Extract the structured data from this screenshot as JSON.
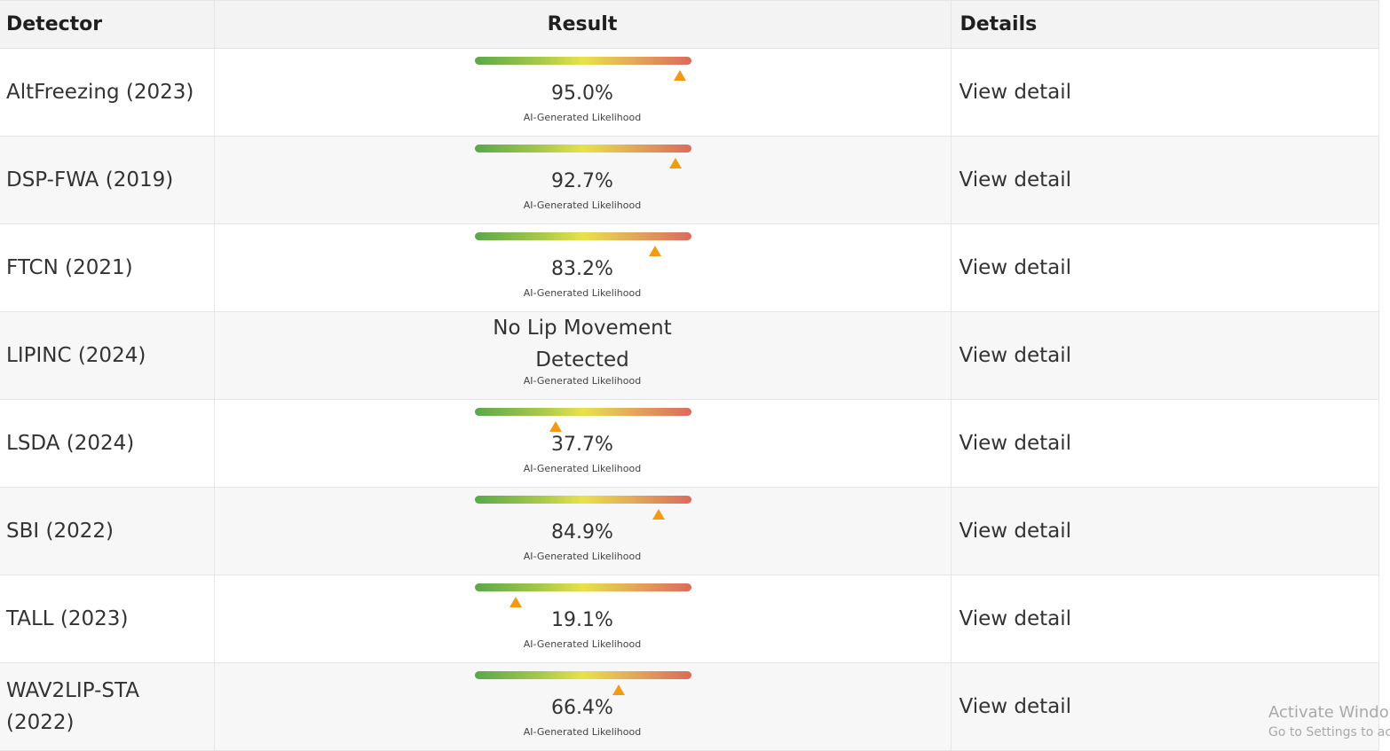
{
  "table": {
    "headers": {
      "detector": "Detector",
      "result": "Result",
      "details": "Details"
    },
    "rows": [
      {
        "detector": "AltFreezing (2023)",
        "percent_text": "95.0%",
        "likelihood": 95.0,
        "sublabel": "AI-Generated Likelihood",
        "details": "View detail"
      },
      {
        "detector": "DSP-FWA (2019)",
        "percent_text": "92.7%",
        "likelihood": 92.7,
        "sublabel": "AI-Generated Likelihood",
        "details": "View detail"
      },
      {
        "detector": "FTCN (2021)",
        "percent_text": "83.2%",
        "likelihood": 83.2,
        "sublabel": "AI-Generated Likelihood",
        "details": "View detail"
      },
      {
        "detector": "LIPINC (2024)",
        "message": "No Lip Movement Detected",
        "sublabel": "AI-Generated Likelihood",
        "details": "View detail"
      },
      {
        "detector": "LSDA (2024)",
        "percent_text": "37.7%",
        "likelihood": 37.7,
        "sublabel": "AI-Generated Likelihood",
        "details": "View detail"
      },
      {
        "detector": "SBI (2022)",
        "percent_text": "84.9%",
        "likelihood": 84.9,
        "sublabel": "AI-Generated Likelihood",
        "details": "View detail"
      },
      {
        "detector": "TALL (2023)",
        "percent_text": "19.1%",
        "likelihood": 19.1,
        "sublabel": "AI-Generated Likelihood",
        "details": "View detail"
      },
      {
        "detector": "WAV2LIP-STA (2022)",
        "percent_text": "66.4%",
        "likelihood": 66.4,
        "sublabel": "AI-Generated Likelihood",
        "details": "View detail"
      }
    ]
  },
  "colors": {
    "marker": "#f39a12",
    "gradient": [
      "#5aa84b",
      "#e8e24a",
      "#db6a5c"
    ]
  },
  "watermark": {
    "line1": "Activate Windows",
    "line2": "Go to Settings to activate Windows."
  }
}
